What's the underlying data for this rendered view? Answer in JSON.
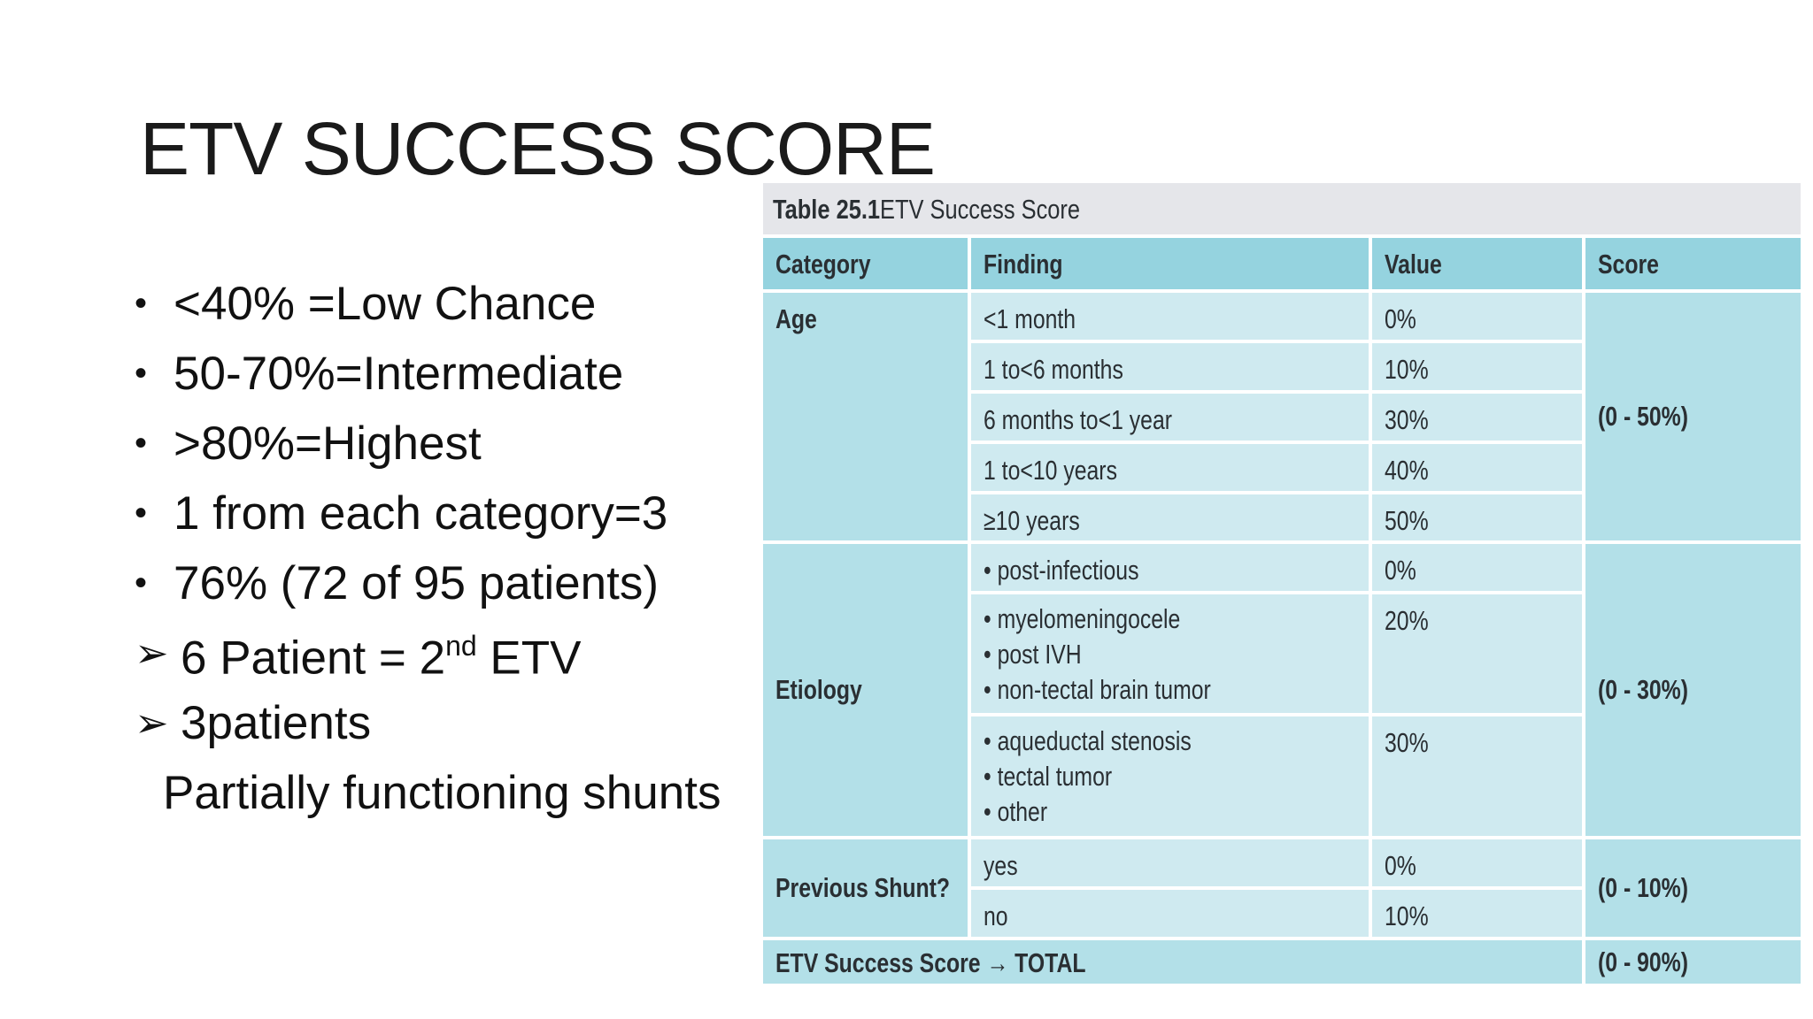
{
  "slide": {
    "title": "ETV SUCCESS SCORE",
    "bullets": [
      "<40% =Low Chance",
      "50-70%=Intermediate",
      ">80%=Highest",
      "1 from each category=3",
      "76% (72 of 95 patients)"
    ],
    "arrow_items": [
      {
        "pre": "6 Patient = 2",
        "sup": "nd",
        "post": " ETV"
      },
      {
        "pre": "3patients",
        "sup": "",
        "post": ""
      }
    ],
    "continuation": "Partially functioning shunts"
  },
  "table": {
    "caption_number": "Table 25.1",
    "caption_text": "ETV Success Score",
    "headers": {
      "category": "Category",
      "finding": "Finding",
      "value": "Value",
      "score": "Score"
    },
    "age": {
      "category": "Age",
      "score": "(0 - 50%)",
      "rows": [
        {
          "finding": "<1 month",
          "value": "0%"
        },
        {
          "finding": "1 to<6 months",
          "value": "10%"
        },
        {
          "finding": "6 months to<1 year",
          "value": "30%"
        },
        {
          "finding": "1 to<10 years",
          "value": "40%"
        },
        {
          "finding": "≥10 years",
          "value": "50%"
        }
      ]
    },
    "etiology": {
      "category": "Etiology",
      "score": "(0 - 30%)",
      "groups": [
        {
          "findings": [
            "• post-infectious"
          ],
          "value": "0%"
        },
        {
          "findings": [
            "• myelomeningocele",
            "• post IVH",
            "• non-tectal brain tumor"
          ],
          "value": "20%"
        },
        {
          "findings": [
            "• aqueductal stenosis",
            "• tectal tumor",
            "• other"
          ],
          "value": "30%"
        }
      ]
    },
    "shunt": {
      "category": "Previous Shunt?",
      "score": "(0 - 10%)",
      "rows": [
        {
          "finding": "yes",
          "value": "0%"
        },
        {
          "finding": "no",
          "value": "10%"
        }
      ]
    },
    "total": {
      "label": "ETV Success Score → TOTAL",
      "score": "(0 - 90%)"
    }
  }
}
